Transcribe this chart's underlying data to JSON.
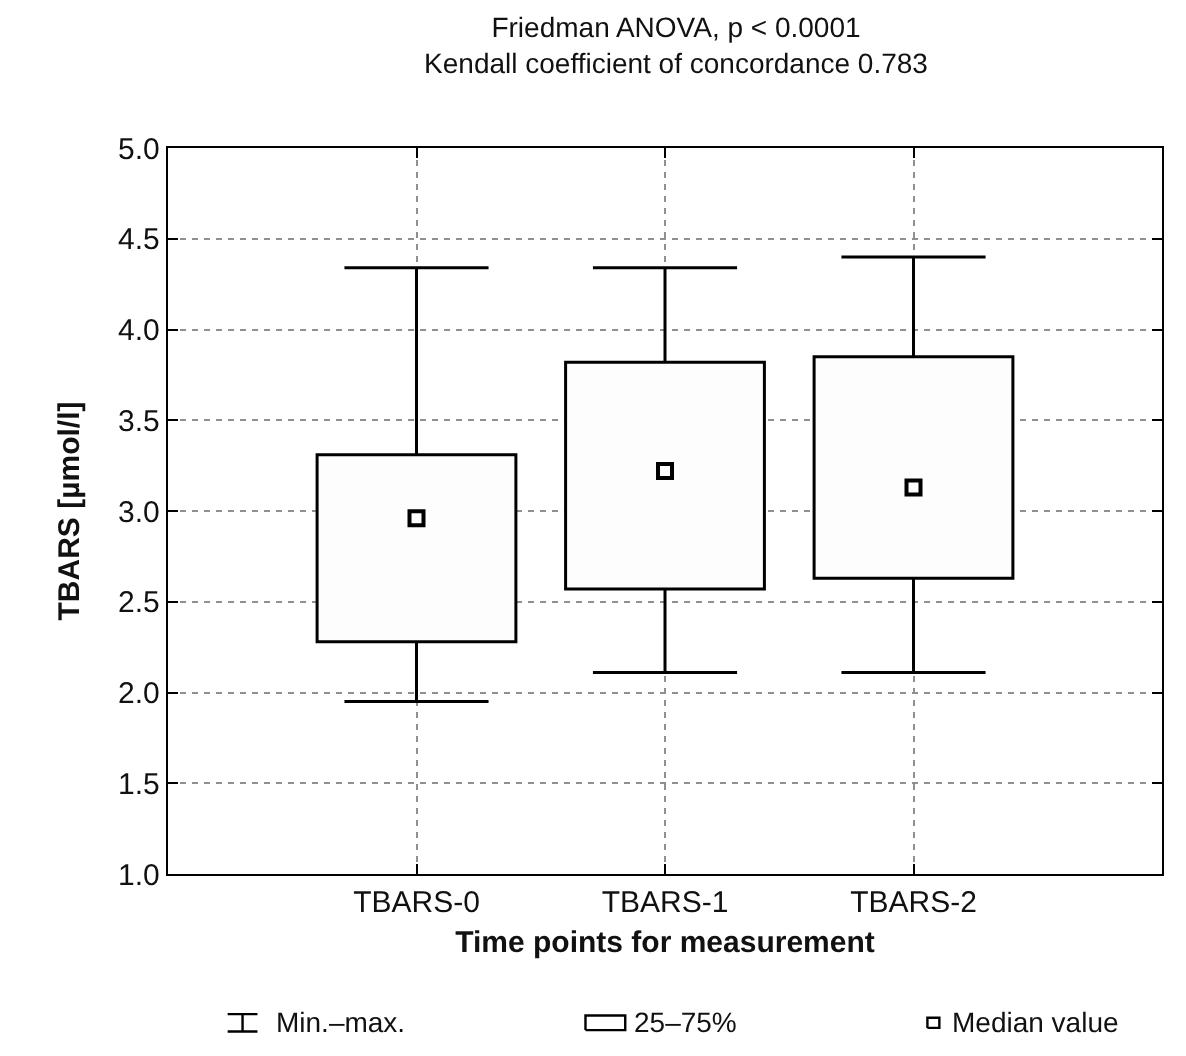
{
  "chart_data": {
    "type": "box",
    "title": "Friedman ANOVA, p < 0.0001",
    "subtitle": "Kendall coefficient of concordance 0.783",
    "xlabel": "Time points for measurement",
    "ylabel": "TBARS [µmol/l]",
    "categories": [
      "TBARS-0",
      "TBARS-1",
      "TBARS-2"
    ],
    "boxes": [
      {
        "low": 1.95,
        "q1": 2.28,
        "median": 2.96,
        "q3": 3.31,
        "high": 4.34
      },
      {
        "low": 2.11,
        "q1": 2.57,
        "median": 3.22,
        "q3": 3.82,
        "high": 4.34
      },
      {
        "low": 2.11,
        "q1": 2.63,
        "median": 3.13,
        "q3": 3.85,
        "high": 4.4
      }
    ],
    "color": "#000000",
    "marker": "square",
    "ylim": [
      1.0,
      5.0
    ],
    "yticks": [
      {
        "value": 1.0,
        "label": "1.0"
      },
      {
        "value": 1.5,
        "label": "1.5"
      },
      {
        "value": 2.0,
        "label": "2.0"
      },
      {
        "value": 2.5,
        "label": "2.5"
      },
      {
        "value": 3.0,
        "label": "3.0"
      },
      {
        "value": 3.5,
        "label": "3.5"
      },
      {
        "value": 4.0,
        "label": "4.0"
      },
      {
        "value": 4.5,
        "label": "4.5"
      },
      {
        "value": 5.0,
        "label": "5.0"
      }
    ],
    "grid": true,
    "annotations": [
      "Min.–max.",
      "25–75%",
      "Median value"
    ]
  }
}
